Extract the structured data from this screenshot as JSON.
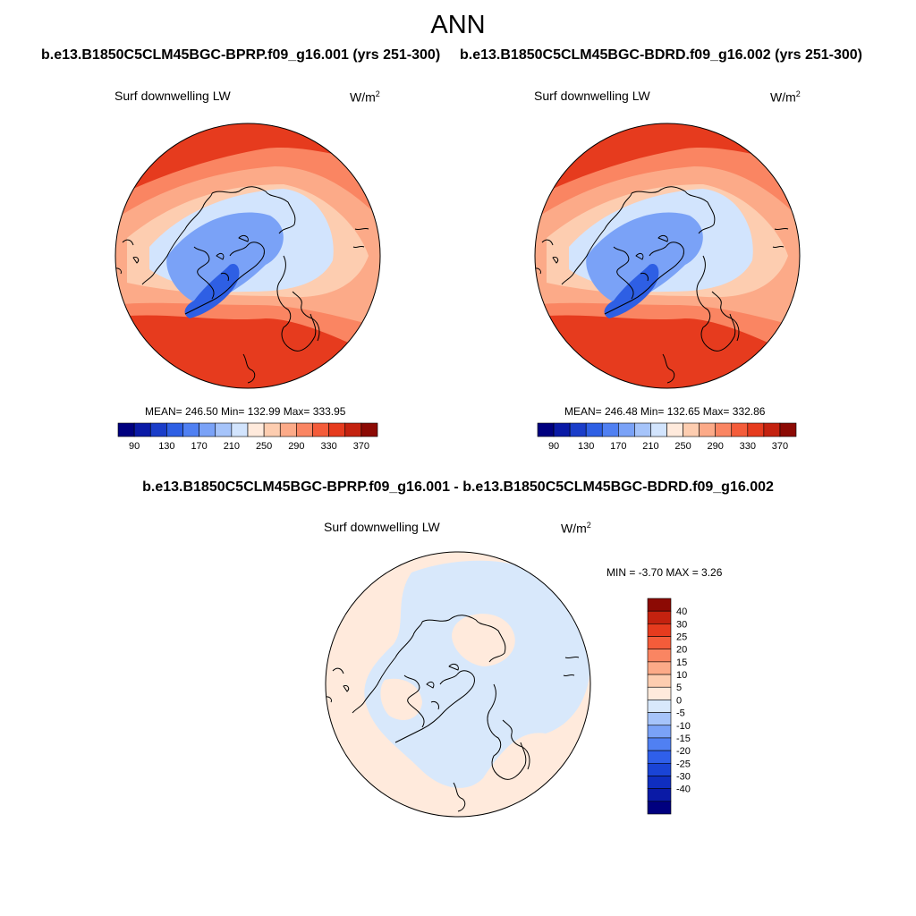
{
  "header": {
    "title": "ANN",
    "left_case": "b.e13.B1850C5CLM45BGC-BPRP.f09_g16.001 (yrs 251-300)",
    "right_case": "b.e13.B1850C5CLM45BGC-BDRD.f09_g16.002 (yrs 251-300)",
    "diff_case": "b.e13.B1850C5CLM45BGC-BPRP.f09_g16.001 - b.e13.B1850C5CLM45BGC-BDRD.f09_g16.002"
  },
  "panels": {
    "left": {
      "variable": "Surf downwelling LW",
      "units_base": "W/m",
      "units_exp": "2",
      "stats": "MEAN= 246.50  Min= 132.99  Max= 333.95"
    },
    "right": {
      "variable": "Surf downwelling LW",
      "units_base": "W/m",
      "units_exp": "2",
      "stats": "MEAN= 246.48  Min= 132.65  Max= 332.86"
    },
    "diff": {
      "variable": "Surf downwelling LW",
      "units_base": "W/m",
      "units_exp": "2",
      "stats": "MIN =  -3.70 MAX =   3.26"
    }
  },
  "colorbars": {
    "abs": {
      "colors": [
        "#00007f",
        "#0a1aa6",
        "#1a3dc9",
        "#2e5fe4",
        "#5080f2",
        "#7aa2f7",
        "#a6c4fa",
        "#d2e4fd",
        "#ffeadc",
        "#fdcdb0",
        "#fcaa88",
        "#fa8562",
        "#f45c3a",
        "#e63b1e",
        "#c4220f",
        "#8c0a04"
      ],
      "labels": [
        "90",
        "130",
        "170",
        "210",
        "250",
        "290",
        "330",
        "370"
      ]
    },
    "diff": {
      "colors": [
        "#00007f",
        "#0a1aa6",
        "#0f2ec0",
        "#1a44d6",
        "#2f5fea",
        "#5080f2",
        "#7aa2f7",
        "#a6c4fa",
        "#d8e8fb",
        "#ffeadc",
        "#fdcdb0",
        "#fcaa88",
        "#fa8562",
        "#f45c3a",
        "#e63b1e",
        "#c4220f",
        "#8c0a04"
      ],
      "labels": [
        "40",
        "30",
        "25",
        "20",
        "15",
        "10",
        "5",
        "0",
        "-5",
        "-10",
        "-15",
        "-20",
        "-25",
        "-30",
        "-40"
      ]
    }
  },
  "map_colors": {
    "ocean_warm": "#e63b1e",
    "mid_warm": "#fa8562",
    "light_warm": "#fcaa88",
    "pale_warm": "#fdcdb0",
    "pale_blue": "#d2e4fd",
    "mid_blue": "#7aa2f7",
    "deep_blue": "#2e5fe4",
    "diff_pos": "#ffeadc",
    "diff_neg": "#d8e8fb"
  }
}
